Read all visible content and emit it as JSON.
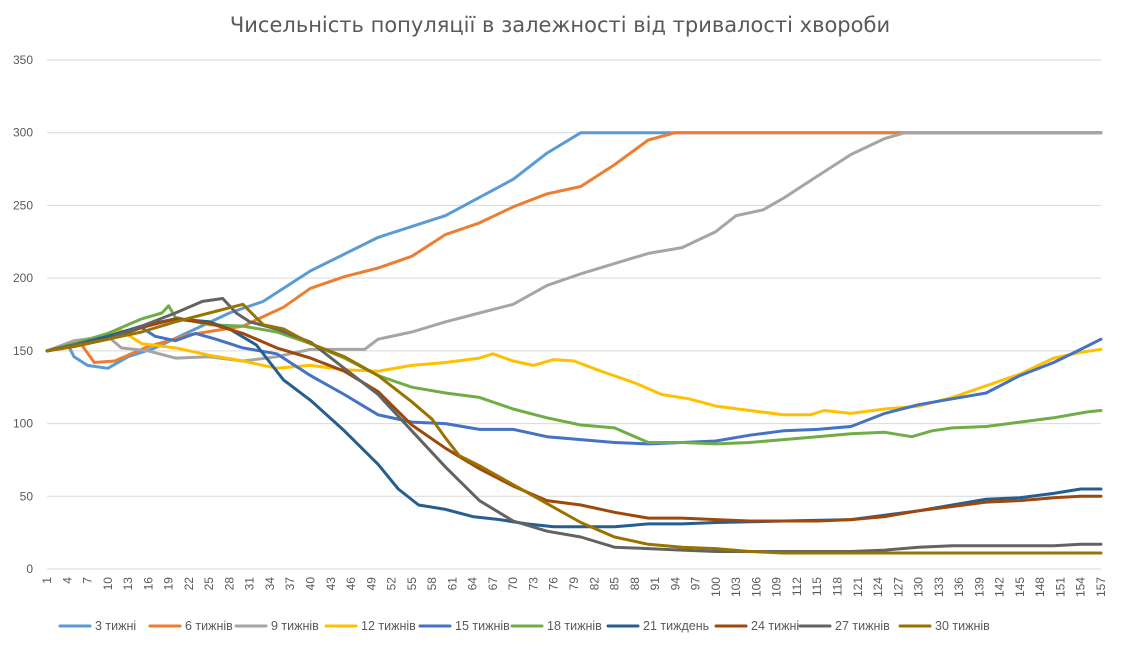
{
  "chart_data": {
    "type": "line",
    "title": "Чисельність популяції в залежності від тривалості хвороби",
    "xlabel": "",
    "ylabel": "",
    "ylim": [
      0,
      350
    ],
    "yticks": [
      0,
      50,
      100,
      150,
      200,
      250,
      300,
      350
    ],
    "x_first": 1,
    "x_last": 157,
    "x_tick_step": 3,
    "grid": true,
    "legend_position": "bottom",
    "series": [
      {
        "name": "3 тижні",
        "color": "#5B9BD5",
        "points": [
          [
            1,
            150
          ],
          [
            4,
            155
          ],
          [
            5,
            146
          ],
          [
            7,
            140
          ],
          [
            10,
            138
          ],
          [
            13,
            146
          ],
          [
            17,
            152
          ],
          [
            22,
            163
          ],
          [
            28,
            176
          ],
          [
            33,
            184
          ],
          [
            40,
            205
          ],
          [
            50,
            228
          ],
          [
            60,
            243
          ],
          [
            70,
            268
          ],
          [
            75,
            286
          ],
          [
            80,
            300
          ],
          [
            100,
            300
          ],
          [
            157,
            300
          ]
        ]
      },
      {
        "name": "6 тижнів",
        "color": "#ED7D31",
        "points": [
          [
            1,
            150
          ],
          [
            6,
            155
          ],
          [
            8,
            142
          ],
          [
            11,
            143
          ],
          [
            16,
            153
          ],
          [
            22,
            161
          ],
          [
            30,
            167
          ],
          [
            36,
            180
          ],
          [
            40,
            193
          ],
          [
            45,
            201
          ],
          [
            50,
            207
          ],
          [
            55,
            215
          ],
          [
            60,
            230
          ],
          [
            65,
            238
          ],
          [
            70,
            249
          ],
          [
            75,
            258
          ],
          [
            80,
            263
          ],
          [
            85,
            278
          ],
          [
            90,
            295
          ],
          [
            94,
            300
          ],
          [
            110,
            300
          ],
          [
            157,
            300
          ]
        ]
      },
      {
        "name": "9 тижнів",
        "color": "#A5A5A5",
        "points": [
          [
            1,
            150
          ],
          [
            5,
            157
          ],
          [
            10,
            160
          ],
          [
            12,
            152
          ],
          [
            16,
            150
          ],
          [
            20,
            145
          ],
          [
            25,
            146
          ],
          [
            30,
            143
          ],
          [
            35,
            146
          ],
          [
            40,
            151
          ],
          [
            48,
            151
          ],
          [
            50,
            158
          ],
          [
            55,
            163
          ],
          [
            60,
            170
          ],
          [
            65,
            176
          ],
          [
            70,
            182
          ],
          [
            75,
            195
          ],
          [
            80,
            203
          ],
          [
            85,
            210
          ],
          [
            90,
            217
          ],
          [
            95,
            221
          ],
          [
            100,
            232
          ],
          [
            103,
            243
          ],
          [
            107,
            247
          ],
          [
            110,
            255
          ],
          [
            115,
            270
          ],
          [
            120,
            285
          ],
          [
            125,
            296
          ],
          [
            128,
            300
          ],
          [
            157,
            300
          ]
        ]
      },
      {
        "name": "12 тижнів",
        "color": "#FFC000",
        "points": [
          [
            1,
            150
          ],
          [
            8,
            159
          ],
          [
            12,
            164
          ],
          [
            15,
            155
          ],
          [
            20,
            152
          ],
          [
            25,
            147
          ],
          [
            30,
            143
          ],
          [
            35,
            138
          ],
          [
            40,
            140
          ],
          [
            45,
            137
          ],
          [
            50,
            136
          ],
          [
            55,
            140
          ],
          [
            60,
            142
          ],
          [
            65,
            145
          ],
          [
            67,
            148
          ],
          [
            70,
            143
          ],
          [
            73,
            140
          ],
          [
            76,
            144
          ],
          [
            79,
            143
          ],
          [
            83,
            136
          ],
          [
            88,
            128
          ],
          [
            92,
            120
          ],
          [
            96,
            117
          ],
          [
            100,
            112
          ],
          [
            105,
            109
          ],
          [
            110,
            106
          ],
          [
            114,
            106
          ],
          [
            116,
            109
          ],
          [
            120,
            107
          ],
          [
            125,
            110
          ],
          [
            130,
            112
          ],
          [
            135,
            118
          ],
          [
            140,
            126
          ],
          [
            145,
            134
          ],
          [
            150,
            145
          ],
          [
            154,
            149
          ],
          [
            157,
            151
          ]
        ]
      },
      {
        "name": "15 тижнів",
        "color": "#4472C4",
        "points": [
          [
            1,
            150
          ],
          [
            5,
            155
          ],
          [
            10,
            160
          ],
          [
            15,
            166
          ],
          [
            17,
            160
          ],
          [
            20,
            157
          ],
          [
            23,
            162
          ],
          [
            26,
            158
          ],
          [
            30,
            152
          ],
          [
            35,
            148
          ],
          [
            40,
            133
          ],
          [
            45,
            120
          ],
          [
            50,
            106
          ],
          [
            55,
            101
          ],
          [
            60,
            100
          ],
          [
            65,
            96
          ],
          [
            70,
            96
          ],
          [
            75,
            91
          ],
          [
            80,
            89
          ],
          [
            85,
            87
          ],
          [
            90,
            86
          ],
          [
            95,
            87
          ],
          [
            100,
            88
          ],
          [
            105,
            92
          ],
          [
            110,
            95
          ],
          [
            115,
            96
          ],
          [
            120,
            98
          ],
          [
            125,
            107
          ],
          [
            130,
            113
          ],
          [
            135,
            117
          ],
          [
            140,
            121
          ],
          [
            145,
            133
          ],
          [
            150,
            142
          ],
          [
            154,
            151
          ],
          [
            157,
            158
          ]
        ]
      },
      {
        "name": "18 тижнів",
        "color": "#70AD47",
        "points": [
          [
            1,
            150
          ],
          [
            5,
            155
          ],
          [
            10,
            162
          ],
          [
            15,
            172
          ],
          [
            18,
            176
          ],
          [
            19,
            181
          ],
          [
            20,
            173
          ],
          [
            25,
            168
          ],
          [
            30,
            167
          ],
          [
            35,
            163
          ],
          [
            40,
            155
          ],
          [
            45,
            145
          ],
          [
            50,
            133
          ],
          [
            55,
            125
          ],
          [
            60,
            121
          ],
          [
            65,
            118
          ],
          [
            70,
            110
          ],
          [
            75,
            104
          ],
          [
            80,
            99
          ],
          [
            85,
            97
          ],
          [
            90,
            87
          ],
          [
            95,
            87
          ],
          [
            100,
            86
          ],
          [
            105,
            87
          ],
          [
            110,
            89
          ],
          [
            115,
            91
          ],
          [
            120,
            93
          ],
          [
            125,
            94
          ],
          [
            129,
            91
          ],
          [
            132,
            95
          ],
          [
            135,
            97
          ],
          [
            140,
            98
          ],
          [
            145,
            101
          ],
          [
            150,
            104
          ],
          [
            155,
            108
          ],
          [
            157,
            109
          ]
        ]
      },
      {
        "name": "21 тиждень",
        "color": "#255E91",
        "points": [
          [
            1,
            150
          ],
          [
            5,
            154
          ],
          [
            10,
            160
          ],
          [
            15,
            167
          ],
          [
            20,
            172
          ],
          [
            25,
            170
          ],
          [
            28,
            165
          ],
          [
            32,
            154
          ],
          [
            36,
            130
          ],
          [
            40,
            116
          ],
          [
            45,
            95
          ],
          [
            50,
            72
          ],
          [
            53,
            55
          ],
          [
            56,
            44
          ],
          [
            60,
            41
          ],
          [
            64,
            36
          ],
          [
            68,
            34
          ],
          [
            72,
            31
          ],
          [
            76,
            29
          ],
          [
            80,
            29
          ],
          [
            85,
            29
          ],
          [
            90,
            31
          ],
          [
            95,
            31
          ],
          [
            100,
            32
          ],
          [
            110,
            33
          ],
          [
            120,
            34
          ],
          [
            125,
            37
          ],
          [
            130,
            40
          ],
          [
            135,
            44
          ],
          [
            140,
            48
          ],
          [
            145,
            49
          ],
          [
            150,
            52
          ],
          [
            154,
            55
          ],
          [
            157,
            55
          ]
        ]
      },
      {
        "name": "24 тижні",
        "color": "#9E480E",
        "points": [
          [
            1,
            150
          ],
          [
            5,
            153
          ],
          [
            10,
            158
          ],
          [
            15,
            166
          ],
          [
            20,
            172
          ],
          [
            25,
            169
          ],
          [
            30,
            162
          ],
          [
            35,
            152
          ],
          [
            40,
            145
          ],
          [
            45,
            136
          ],
          [
            50,
            122
          ],
          [
            55,
            99
          ],
          [
            60,
            83
          ],
          [
            65,
            69
          ],
          [
            70,
            57
          ],
          [
            75,
            47
          ],
          [
            80,
            44
          ],
          [
            85,
            39
          ],
          [
            90,
            35
          ],
          [
            95,
            35
          ],
          [
            100,
            34
          ],
          [
            105,
            33
          ],
          [
            110,
            33
          ],
          [
            115,
            33
          ],
          [
            120,
            34
          ],
          [
            125,
            36
          ],
          [
            130,
            40
          ],
          [
            135,
            43
          ],
          [
            140,
            46
          ],
          [
            145,
            47
          ],
          [
            150,
            49
          ],
          [
            154,
            50
          ],
          [
            157,
            50
          ]
        ]
      },
      {
        "name": "27 тижнів",
        "color": "#636363",
        "points": [
          [
            1,
            150
          ],
          [
            5,
            154
          ],
          [
            10,
            158
          ],
          [
            15,
            167
          ],
          [
            20,
            176
          ],
          [
            24,
            184
          ],
          [
            27,
            186
          ],
          [
            29,
            176
          ],
          [
            31,
            170
          ],
          [
            35,
            165
          ],
          [
            40,
            156
          ],
          [
            45,
            138
          ],
          [
            50,
            120
          ],
          [
            55,
            95
          ],
          [
            60,
            70
          ],
          [
            65,
            47
          ],
          [
            70,
            33
          ],
          [
            75,
            26
          ],
          [
            80,
            22
          ],
          [
            85,
            15
          ],
          [
            90,
            14
          ],
          [
            95,
            13
          ],
          [
            100,
            12
          ],
          [
            105,
            12
          ],
          [
            110,
            12
          ],
          [
            120,
            12
          ],
          [
            125,
            13
          ],
          [
            130,
            15
          ],
          [
            135,
            16
          ],
          [
            140,
            16
          ],
          [
            145,
            16
          ],
          [
            150,
            16
          ],
          [
            154,
            17
          ],
          [
            157,
            17
          ]
        ]
      },
      {
        "name": "30 тижнів",
        "color": "#997300",
        "points": [
          [
            1,
            150
          ],
          [
            5,
            153
          ],
          [
            10,
            158
          ],
          [
            15,
            163
          ],
          [
            20,
            170
          ],
          [
            25,
            176
          ],
          [
            30,
            182
          ],
          [
            33,
            168
          ],
          [
            36,
            165
          ],
          [
            40,
            155
          ],
          [
            45,
            146
          ],
          [
            50,
            133
          ],
          [
            55,
            115
          ],
          [
            58,
            103
          ],
          [
            60,
            90
          ],
          [
            62,
            78
          ],
          [
            65,
            71
          ],
          [
            70,
            58
          ],
          [
            75,
            45
          ],
          [
            80,
            32
          ],
          [
            85,
            22
          ],
          [
            90,
            17
          ],
          [
            95,
            15
          ],
          [
            100,
            14
          ],
          [
            105,
            12
          ],
          [
            110,
            11
          ],
          [
            120,
            11
          ],
          [
            130,
            11
          ],
          [
            140,
            11
          ],
          [
            150,
            11
          ],
          [
            157,
            11
          ]
        ]
      }
    ]
  }
}
